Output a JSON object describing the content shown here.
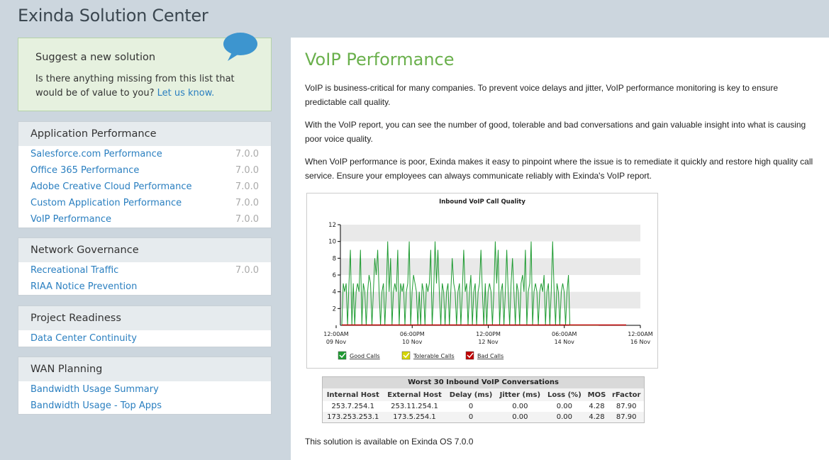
{
  "app": {
    "title": "Exinda Solution Center"
  },
  "suggest": {
    "heading": "Suggest a new solution",
    "text": "Is there anything missing from this list that would be of value to you?",
    "link": "Let us know."
  },
  "panels": [
    {
      "title": "Application Performance",
      "items": [
        {
          "label": "Salesforce.com Performance",
          "version": "7.0.0"
        },
        {
          "label": "Office 365 Performance",
          "version": "7.0.0"
        },
        {
          "label": "Adobe Creative Cloud Performance",
          "version": "7.0.0"
        },
        {
          "label": "Custom Application Performance",
          "version": "7.0.0"
        },
        {
          "label": "VoIP Performance",
          "version": "7.0.0"
        }
      ]
    },
    {
      "title": "Network Governance",
      "items": [
        {
          "label": "Recreational Traffic",
          "version": "7.0.0"
        },
        {
          "label": "RIAA Notice Prevention",
          "version": ""
        }
      ]
    },
    {
      "title": "Project Readiness",
      "items": [
        {
          "label": "Data Center Continuity",
          "version": ""
        }
      ]
    },
    {
      "title": "WAN Planning",
      "items": [
        {
          "label": "Bandwidth Usage Summary",
          "version": ""
        },
        {
          "label": "Bandwidth Usage - Top Apps",
          "version": ""
        }
      ]
    }
  ],
  "main": {
    "title": "VoIP Performance",
    "paragraphs": [
      "VoIP is business-critical for many companies. To prevent voice delays and jitter, VoIP performance monitoring is key to ensure predictable call quality.",
      "With the VoIP report, you can see the number of good, tolerable and bad conversations and gain valuable insight into what is causing poor voice quality.",
      "When VoIP performance is poor, Exinda makes it easy to pinpoint where the issue is to remediate it quickly and restore high quality call service. Ensure your employees can always communicate reliably with Exinda's VoIP report."
    ],
    "footer": "This solution is available on Exinda OS 7.0.0"
  },
  "chart_data": {
    "type": "line",
    "title": "Inbound VoIP Call Quality",
    "yticks": [
      "12",
      "10",
      "8",
      "6",
      "4",
      "2"
    ],
    "ylim": [
      0,
      12
    ],
    "xticks": [
      {
        "l1": "12:00AM",
        "l2": "09 Nov"
      },
      {
        "l1": "06:00PM",
        "l2": "10 Nov"
      },
      {
        "l1": "12:00PM",
        "l2": "12 Nov"
      },
      {
        "l1": "06:00AM",
        "l2": "14 Nov"
      },
      {
        "l1": "12:00AM",
        "l2": "16 Nov"
      }
    ],
    "legend": [
      "Good Calls",
      "Tolerable Calls",
      "Bad Calls"
    ],
    "colors": {
      "good": "#1f9b32",
      "tolerable": "#d6d600",
      "bad": "#c00000"
    },
    "series": [
      {
        "name": "Good Calls",
        "values": [
          0,
          5,
          4,
          5,
          0,
          5,
          9,
          0,
          5,
          0,
          4,
          5,
          4,
          9,
          0,
          5,
          4,
          0,
          4,
          6,
          5,
          0,
          4,
          8,
          6,
          9,
          4,
          0,
          4,
          5,
          0,
          4,
          10,
          4,
          8,
          0,
          4,
          5,
          4,
          9,
          0,
          5,
          4,
          5,
          0,
          4,
          5,
          10,
          0,
          4,
          6,
          5,
          4,
          0,
          4,
          0,
          5,
          4,
          0,
          5,
          4,
          5,
          9,
          0,
          4,
          10,
          5,
          9,
          4,
          0,
          5,
          4,
          0,
          4,
          5,
          0,
          4,
          8,
          5,
          4,
          0,
          4,
          5,
          0,
          4,
          9,
          4,
          5,
          0,
          4,
          6,
          0,
          4,
          5,
          0,
          4,
          5,
          9,
          4,
          0,
          5,
          0,
          4,
          5,
          4,
          0,
          4,
          10,
          5,
          9,
          0,
          4,
          5,
          0,
          4,
          9,
          4,
          0,
          5,
          8,
          4,
          0,
          5,
          4,
          0,
          5,
          6,
          4,
          9,
          0,
          4,
          5,
          10,
          0,
          4,
          5,
          4,
          0,
          4,
          5,
          4,
          6,
          0,
          4,
          5,
          0,
          4,
          10,
          4,
          0,
          5,
          4,
          0,
          4,
          5,
          4,
          0,
          4,
          6,
          0,
          0,
          0,
          0,
          0,
          0,
          0,
          0,
          0,
          0,
          0,
          0,
          0,
          0,
          0,
          0,
          0,
          0,
          0,
          0,
          0
        ]
      },
      {
        "name": "Bad Calls",
        "values": [
          0,
          0
        ]
      }
    ]
  },
  "table": {
    "title": "Worst 30 Inbound VoIP Conversations",
    "headers": [
      "Internal Host",
      "External Host",
      "Delay (ms)",
      "Jitter (ms)",
      "Loss (%)",
      "MOS",
      "rFactor"
    ],
    "rows": [
      [
        "253.7.254.1",
        "253.11.254.1",
        "0",
        "0.00",
        "0.00",
        "4.28",
        "87.90"
      ],
      [
        "173.253.253.1",
        "173.5.254.1",
        "0",
        "0.00",
        "0.00",
        "4.28",
        "87.90"
      ]
    ]
  }
}
